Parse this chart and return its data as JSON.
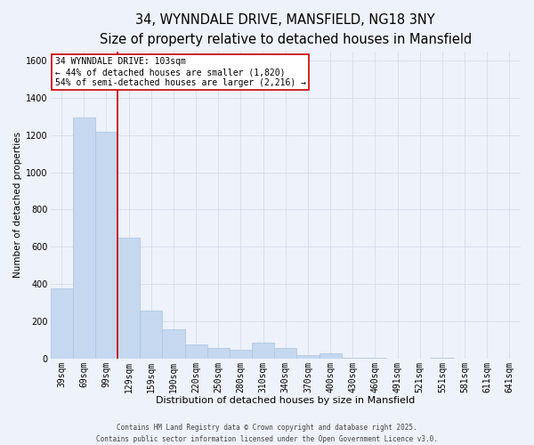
{
  "title_line1": "34, WYNNDALE DRIVE, MANSFIELD, NG18 3NY",
  "title_line2": "Size of property relative to detached houses in Mansfield",
  "xlabel": "Distribution of detached houses by size in Mansfield",
  "ylabel": "Number of detached properties",
  "categories": [
    "39sqm",
    "69sqm",
    "99sqm",
    "129sqm",
    "159sqm",
    "190sqm",
    "220sqm",
    "250sqm",
    "280sqm",
    "310sqm",
    "340sqm",
    "370sqm",
    "400sqm",
    "430sqm",
    "460sqm",
    "491sqm",
    "521sqm",
    "551sqm",
    "581sqm",
    "611sqm",
    "641sqm"
  ],
  "values": [
    375,
    1295,
    1220,
    650,
    255,
    155,
    75,
    55,
    45,
    85,
    55,
    20,
    30,
    5,
    5,
    0,
    0,
    5,
    0,
    0,
    0
  ],
  "bar_color": "#c5d8f0",
  "bar_edge_color": "#a8c4e0",
  "grid_color": "#d0d8e8",
  "bg_color": "#eef2fa",
  "vline_color": "#cc0000",
  "vline_x_index": 2.5,
  "annotation_text": "34 WYNNDALE DRIVE: 103sqm\n← 44% of detached houses are smaller (1,820)\n54% of semi-detached houses are larger (2,216) →",
  "annotation_box_color": "#ffffff",
  "annotation_box_edge": "#cc0000",
  "footer_line1": "Contains HM Land Registry data © Crown copyright and database right 2025.",
  "footer_line2": "Contains public sector information licensed under the Open Government Licence v3.0.",
  "ylim": [
    0,
    1650
  ],
  "yticks": [
    0,
    200,
    400,
    600,
    800,
    1000,
    1200,
    1400,
    1600
  ],
  "title_fontsize": 10.5,
  "subtitle_fontsize": 8.5,
  "xlabel_fontsize": 8,
  "ylabel_fontsize": 7.5,
  "tick_fontsize": 7,
  "annotation_fontsize": 7,
  "footer_fontsize": 5.5
}
